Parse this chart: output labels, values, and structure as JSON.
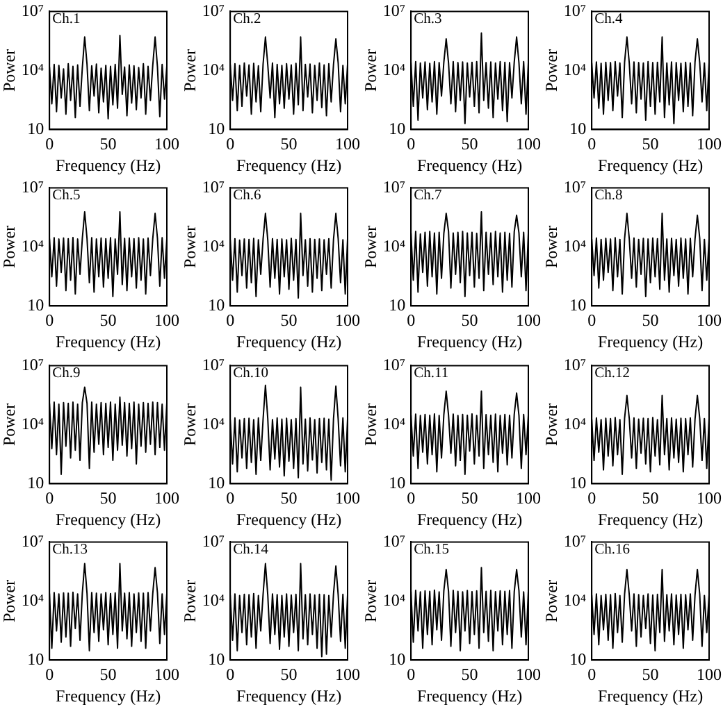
{
  "chart_data": [
    {
      "type": "line",
      "title": "Ch.1",
      "xlabel": "Frequency (Hz)",
      "ylabel": "Power",
      "log": "y",
      "legend": false,
      "grid": false,
      "color": "#000000",
      "xlim": [
        0,
        100
      ],
      "xticks": [
        0,
        50,
        100
      ],
      "ylim": [
        10,
        10000000.0
      ],
      "yticks": [
        {
          "value": 10,
          "label": "10"
        },
        {
          "value": 10000.0,
          "label": "10⁴"
        },
        {
          "value": 10000000.0,
          "label": "10⁷"
        }
      ],
      "x": [
        0,
        2,
        4,
        6,
        8,
        10,
        12,
        14,
        16,
        18,
        20,
        22,
        24,
        26,
        28,
        30,
        32,
        34,
        36,
        38,
        40,
        42,
        44,
        46,
        48,
        50,
        52,
        54,
        56,
        58,
        60,
        62,
        64,
        66,
        68,
        70,
        72,
        74,
        76,
        78,
        80,
        82,
        84,
        86,
        88,
        90,
        92,
        94,
        96,
        98,
        100
      ],
      "values": [
        15000.0,
        200,
        20000.0,
        80,
        18000.0,
        400,
        12000.0,
        60,
        22000.0,
        300,
        16000.0,
        40,
        19000.0,
        150,
        14000.0,
        500000.0,
        20000.0,
        90,
        17000.0,
        500,
        21000.0,
        70,
        13000.0,
        250,
        18000.0,
        35,
        16000.0,
        180,
        20000.0,
        120,
        600000.0,
        600,
        15000.0,
        50,
        19000.0,
        220,
        17000.0,
        100,
        14000.0,
        400,
        22000.0,
        60,
        16000.0,
        300,
        18000.0,
        500000.0,
        15000.0,
        45,
        20000.0,
        350,
        17000.0
      ]
    },
    {
      "type": "line",
      "title": "Ch.2",
      "xlabel": "Frequency (Hz)",
      "ylabel": "Power",
      "log": "y",
      "legend": false,
      "grid": false,
      "color": "#000000",
      "xlim": [
        0,
        100
      ],
      "xticks": [
        0,
        50,
        100
      ],
      "ylim": [
        10,
        10000000.0
      ],
      "yticks": [
        {
          "value": 10,
          "label": "10"
        },
        {
          "value": 10000.0,
          "label": "10⁴"
        },
        {
          "value": 10000000.0,
          "label": "10⁷"
        }
      ],
      "x": [
        0,
        2,
        4,
        6,
        8,
        10,
        12,
        14,
        16,
        18,
        20,
        22,
        24,
        26,
        28,
        30,
        32,
        34,
        36,
        38,
        40,
        42,
        44,
        46,
        48,
        50,
        52,
        54,
        56,
        58,
        60,
        62,
        64,
        66,
        68,
        70,
        72,
        74,
        76,
        78,
        80,
        82,
        84,
        86,
        88,
        90,
        92,
        94,
        96,
        98,
        100
      ],
      "values": [
        20000.0,
        300,
        22000.0,
        90,
        18000.0,
        150,
        24000.0,
        500,
        19000.0,
        60,
        23000.0,
        250,
        17000.0,
        80,
        21000.0,
        500000.0,
        19000.0,
        400,
        24000.0,
        40,
        20000.0,
        200,
        18000.0,
        120,
        22000.0,
        350,
        19000.0,
        60,
        23000.0,
        180,
        500000.0,
        90,
        20000.0,
        450,
        21000.0,
        70,
        18000.0,
        300,
        24000.0,
        130,
        19000.0,
        50,
        22000.0,
        250,
        20000.0,
        400000.0,
        23000.0,
        80,
        18000.0,
        200,
        21000.0
      ]
    },
    {
      "type": "line",
      "title": "Ch.3",
      "xlabel": "Frequency (Hz)",
      "ylabel": "Power",
      "log": "y",
      "legend": false,
      "grid": false,
      "color": "#000000",
      "xlim": [
        0,
        100
      ],
      "xticks": [
        0,
        50,
        100
      ],
      "ylim": [
        10,
        10000000.0
      ],
      "yticks": [
        {
          "value": 10,
          "label": "10"
        },
        {
          "value": 10000.0,
          "label": "10⁴"
        },
        {
          "value": 10000000.0,
          "label": "10⁷"
        }
      ],
      "x": [
        0,
        2,
        4,
        6,
        8,
        10,
        12,
        14,
        16,
        18,
        20,
        22,
        24,
        26,
        28,
        30,
        32,
        34,
        36,
        38,
        40,
        42,
        44,
        46,
        48,
        50,
        52,
        54,
        56,
        58,
        60,
        62,
        64,
        66,
        68,
        70,
        72,
        74,
        76,
        78,
        80,
        82,
        84,
        86,
        88,
        90,
        92,
        94,
        96,
        98,
        100
      ],
      "values": [
        25000.0,
        150,
        28000.0,
        30,
        24000.0,
        400,
        27000.0,
        100,
        23000.0,
        250,
        28000.0,
        60,
        25000.0,
        500,
        26000.0,
        400000.0,
        24000.0,
        200,
        28000.0,
        80,
        25000.0,
        300,
        27000.0,
        20,
        24000.0,
        450,
        26000.0,
        150,
        28000.0,
        70,
        800000.0,
        300,
        25000.0,
        120,
        27000.0,
        40,
        24000.0,
        350,
        28000.0,
        90,
        26000.0,
        25,
        25000.0,
        400,
        27000.0,
        500000.0,
        24000.0,
        200,
        28000.0,
        60,
        25000.0
      ]
    },
    {
      "type": "line",
      "title": "Ch.4",
      "xlabel": "Frequency (Hz)",
      "ylabel": "Power",
      "log": "y",
      "legend": false,
      "grid": false,
      "color": "#000000",
      "xlim": [
        0,
        100
      ],
      "xticks": [
        0,
        50,
        100
      ],
      "ylim": [
        10,
        10000000.0
      ],
      "yticks": [
        {
          "value": 10,
          "label": "10"
        },
        {
          "value": 10000.0,
          "label": "10⁴"
        },
        {
          "value": 10000000.0,
          "label": "10⁷"
        }
      ],
      "x": [
        0,
        2,
        4,
        6,
        8,
        10,
        12,
        14,
        16,
        18,
        20,
        22,
        24,
        26,
        28,
        30,
        32,
        34,
        36,
        38,
        40,
        42,
        44,
        46,
        48,
        50,
        52,
        54,
        56,
        58,
        60,
        62,
        64,
        66,
        68,
        70,
        72,
        74,
        76,
        78,
        80,
        82,
        84,
        86,
        88,
        90,
        92,
        94,
        96,
        98,
        100
      ],
      "values": [
        24000.0,
        400,
        27000.0,
        120,
        23000.0,
        60,
        26000.0,
        300,
        25000.0,
        90,
        28000.0,
        500,
        24000.0,
        40,
        26000.0,
        500000.0,
        23000.0,
        200,
        27000.0,
        70,
        25000.0,
        350,
        24000.0,
        30,
        28000.0,
        150,
        25000.0,
        60,
        26000.0,
        250,
        500000.0,
        40,
        24000.0,
        180,
        27000.0,
        20,
        25000.0,
        300,
        23000.0,
        80,
        26000.0,
        150,
        24000.0,
        50,
        27000.0,
        400000.0,
        25000.0,
        250,
        24000.0,
        90,
        26000.0
      ]
    },
    {
      "type": "line",
      "title": "Ch.5",
      "xlabel": "Frequency (Hz)",
      "ylabel": "Power",
      "log": "y",
      "legend": false,
      "grid": false,
      "color": "#000000",
      "xlim": [
        0,
        100
      ],
      "xticks": [
        0,
        50,
        100
      ],
      "ylim": [
        10,
        10000000.0
      ],
      "yticks": [
        {
          "value": 10,
          "label": "10"
        },
        {
          "value": 10000.0,
          "label": "10⁴"
        },
        {
          "value": 10000000.0,
          "label": "10⁷"
        }
      ],
      "x": [
        0,
        2,
        4,
        6,
        8,
        10,
        12,
        14,
        16,
        18,
        20,
        22,
        24,
        26,
        28,
        30,
        32,
        34,
        36,
        38,
        40,
        42,
        44,
        46,
        48,
        50,
        52,
        54,
        56,
        58,
        60,
        62,
        64,
        66,
        68,
        70,
        72,
        74,
        76,
        78,
        80,
        82,
        84,
        86,
        88,
        90,
        92,
        94,
        96,
        98,
        100
      ],
      "values": [
        26000.0,
        300,
        29000.0,
        100,
        25000.0,
        500,
        28000.0,
        60,
        26000.0,
        200,
        30000.0,
        40,
        25000.0,
        400,
        27000.0,
        600000.0,
        26000.0,
        150,
        29000.0,
        50,
        25000.0,
        300,
        28000.0,
        90,
        26000.0,
        250,
        29000.0,
        30,
        25000.0,
        400,
        600000.0,
        120,
        27000.0,
        60,
        28000.0,
        300,
        26000.0,
        80,
        29000.0,
        200,
        25000.0,
        40,
        28000.0,
        350,
        26000.0,
        500000.0,
        27000.0,
        100,
        29000.0,
        250,
        26000.0
      ]
    },
    {
      "type": "line",
      "title": "Ch.6",
      "xlabel": "Frequency (Hz)",
      "ylabel": "Power",
      "log": "y",
      "legend": false,
      "grid": false,
      "color": "#000000",
      "xlim": [
        0,
        100
      ],
      "xticks": [
        0,
        50,
        100
      ],
      "ylim": [
        10,
        10000000.0
      ],
      "yticks": [
        {
          "value": 10,
          "label": "10"
        },
        {
          "value": 10000.0,
          "label": "10⁴"
        },
        {
          "value": 10000000.0,
          "label": "10⁷"
        }
      ],
      "x": [
        0,
        2,
        4,
        6,
        8,
        10,
        12,
        14,
        16,
        18,
        20,
        22,
        24,
        26,
        28,
        30,
        32,
        34,
        36,
        38,
        40,
        42,
        44,
        46,
        48,
        50,
        52,
        54,
        56,
        58,
        60,
        62,
        64,
        66,
        68,
        70,
        72,
        74,
        76,
        78,
        80,
        82,
        84,
        86,
        88,
        90,
        92,
        94,
        96,
        98,
        100
      ],
      "values": [
        23000.0,
        200,
        26000.0,
        50,
        22000.0,
        350,
        25000.0,
        80,
        24000.0,
        150,
        27000.0,
        30,
        23000.0,
        400,
        25000.0,
        500000.0,
        22000.0,
        90,
        26000.0,
        250,
        24000.0,
        40,
        25000.0,
        300,
        23000.0,
        70,
        27000.0,
        200,
        24000.0,
        25,
        500000.0,
        350,
        23000.0,
        100,
        26000.0,
        50,
        24000.0,
        250,
        25000.0,
        60,
        23000.0,
        400,
        26000.0,
        80,
        24000.0,
        500000.0,
        25000.0,
        150,
        23000.0,
        40,
        26000.0
      ]
    },
    {
      "type": "line",
      "title": "Ch.7",
      "xlabel": "Frequency (Hz)",
      "ylabel": "Power",
      "log": "y",
      "legend": false,
      "grid": false,
      "color": "#000000",
      "xlim": [
        0,
        100
      ],
      "xticks": [
        0,
        50,
        100
      ],
      "ylim": [
        10,
        10000000.0
      ],
      "yticks": [
        {
          "value": 10,
          "label": "10"
        },
        {
          "value": 10000.0,
          "label": "10⁴"
        },
        {
          "value": 10000000.0,
          "label": "10⁷"
        }
      ],
      "x": [
        0,
        2,
        4,
        6,
        8,
        10,
        12,
        14,
        16,
        18,
        20,
        22,
        24,
        26,
        28,
        30,
        32,
        34,
        36,
        38,
        40,
        42,
        44,
        46,
        48,
        50,
        52,
        54,
        56,
        58,
        60,
        62,
        64,
        66,
        68,
        70,
        72,
        74,
        76,
        78,
        80,
        82,
        84,
        86,
        88,
        90,
        92,
        94,
        96,
        98,
        100
      ],
      "values": [
        50000.0,
        200,
        60000.0,
        50,
        45000.0,
        500,
        55000.0,
        100,
        60000.0,
        300,
        50000.0,
        40,
        55000.0,
        250,
        48000.0,
        500000.0,
        60000.0,
        80,
        50000.0,
        400,
        55000.0,
        150,
        60000.0,
        30,
        50000.0,
        350,
        55000.0,
        90,
        48000.0,
        250,
        600000.0,
        60,
        55000.0,
        400,
        50000.0,
        120,
        60000.0,
        300,
        50000.0,
        50,
        55000.0,
        200,
        48000.0,
        90,
        60000.0,
        400000.0,
        50000.0,
        300,
        55000.0,
        60,
        50000.0
      ]
    },
    {
      "type": "line",
      "title": "Ch.8",
      "xlabel": "Frequency (Hz)",
      "ylabel": "Power",
      "log": "y",
      "legend": false,
      "grid": false,
      "color": "#000000",
      "xlim": [
        0,
        100
      ],
      "xticks": [
        0,
        50,
        100
      ],
      "ylim": [
        10,
        10000000.0
      ],
      "yticks": [
        {
          "value": 10,
          "label": "10"
        },
        {
          "value": 10000.0,
          "label": "10⁴"
        },
        {
          "value": 10000000.0,
          "label": "10⁷"
        }
      ],
      "x": [
        0,
        2,
        4,
        6,
        8,
        10,
        12,
        14,
        16,
        18,
        20,
        22,
        24,
        26,
        28,
        30,
        32,
        34,
        36,
        38,
        40,
        42,
        44,
        46,
        48,
        50,
        52,
        54,
        56,
        58,
        60,
        62,
        64,
        66,
        68,
        70,
        72,
        74,
        76,
        78,
        80,
        82,
        84,
        86,
        88,
        90,
        92,
        94,
        96,
        98,
        100
      ],
      "values": [
        25000.0,
        350,
        28000.0,
        80,
        24000.0,
        200,
        27000.0,
        500,
        25000.0,
        60,
        29000.0,
        300,
        24000.0,
        40,
        26000.0,
        500000.0,
        25000.0,
        250,
        28000.0,
        90,
        24000.0,
        400,
        27000.0,
        30,
        25000.0,
        150,
        28000.0,
        300,
        26000.0,
        70,
        500000.0,
        200,
        25000.0,
        50,
        27000.0,
        350,
        24000.0,
        100,
        28000.0,
        250,
        25000.0,
        40,
        27000.0,
        300,
        25000.0,
        400000.0,
        28000.0,
        60,
        24000.0,
        200,
        26000.0
      ]
    },
    {
      "type": "line",
      "title": "Ch.9",
      "xlabel": "Frequency (Hz)",
      "ylabel": "Power",
      "log": "y",
      "legend": false,
      "grid": false,
      "color": "#000000",
      "xlim": [
        0,
        100
      ],
      "xticks": [
        0,
        50,
        100
      ],
      "ylim": [
        10,
        10000000.0
      ],
      "yticks": [
        {
          "value": 10,
          "label": "10"
        },
        {
          "value": 10000.0,
          "label": "10⁴"
        },
        {
          "value": 10000000.0,
          "label": "10⁷"
        }
      ],
      "x": [
        0,
        2,
        4,
        6,
        8,
        10,
        12,
        14,
        16,
        18,
        20,
        22,
        24,
        26,
        28,
        30,
        32,
        34,
        36,
        38,
        40,
        42,
        44,
        46,
        48,
        50,
        52,
        54,
        56,
        58,
        60,
        62,
        64,
        66,
        68,
        70,
        72,
        74,
        76,
        78,
        80,
        82,
        84,
        86,
        88,
        90,
        92,
        94,
        96,
        98,
        100
      ],
      "values": [
        120000.0,
        600,
        140000.0,
        300,
        110000.0,
        30,
        130000.0,
        800,
        120000.0,
        200,
        140000.0,
        500,
        110000.0,
        150,
        130000.0,
        800000.0,
        120000.0,
        60,
        140000.0,
        400,
        110000.0,
        1000,
        130000.0,
        300,
        120000.0,
        700,
        140000.0,
        150,
        110000.0,
        500,
        250000.0,
        900,
        130000.0,
        250,
        120000.0,
        600,
        140000.0,
        100,
        110000.0,
        800,
        130000.0,
        400,
        120000.0,
        1000,
        140000.0,
        300,
        130000.0,
        700,
        110000.0,
        500,
        130000.0
      ]
    },
    {
      "type": "line",
      "title": "Ch.10",
      "xlabel": "Frequency (Hz)",
      "ylabel": "Power",
      "log": "y",
      "legend": false,
      "grid": false,
      "color": "#000000",
      "xlim": [
        0,
        100
      ],
      "xticks": [
        0,
        50,
        100
      ],
      "ylim": [
        10,
        10000000.0
      ],
      "yticks": [
        {
          "value": 10,
          "label": "10"
        },
        {
          "value": 10000.0,
          "label": "10⁴"
        },
        {
          "value": 10000000.0,
          "label": "10⁷"
        }
      ],
      "x": [
        0,
        2,
        4,
        6,
        8,
        10,
        12,
        14,
        16,
        18,
        20,
        22,
        24,
        26,
        28,
        30,
        32,
        34,
        36,
        38,
        40,
        42,
        44,
        46,
        48,
        50,
        52,
        54,
        56,
        58,
        60,
        62,
        64,
        66,
        68,
        70,
        72,
        74,
        76,
        78,
        80,
        82,
        84,
        86,
        88,
        90,
        92,
        94,
        96,
        98,
        100
      ],
      "values": [
        18000.0,
        100,
        22000.0,
        40,
        17000.0,
        200,
        20000.0,
        60,
        21000.0,
        120,
        18000.0,
        30,
        22000.0,
        150,
        19000.0,
        1000000.0,
        20000.0,
        50,
        18000.0,
        180,
        22000.0,
        70,
        19000.0,
        25,
        21000.0,
        140,
        18000.0,
        60,
        20000.0,
        20,
        800000.0,
        100,
        19000.0,
        45,
        22000.0,
        160,
        18000.0,
        35,
        20000.0,
        120,
        21000.0,
        50,
        19000.0,
        15,
        20000.0,
        900000.0,
        18000.0,
        80,
        22000.0,
        40,
        20000.0
      ]
    },
    {
      "type": "line",
      "title": "Ch.11",
      "xlabel": "Frequency (Hz)",
      "ylabel": "Power",
      "log": "y",
      "legend": false,
      "grid": false,
      "color": "#000000",
      "xlim": [
        0,
        100
      ],
      "xticks": [
        0,
        50,
        100
      ],
      "ylim": [
        10,
        10000000.0
      ],
      "yticks": [
        {
          "value": 10,
          "label": "10"
        },
        {
          "value": 10000.0,
          "label": "10⁴"
        },
        {
          "value": 10000000.0,
          "label": "10⁷"
        }
      ],
      "x": [
        0,
        2,
        4,
        6,
        8,
        10,
        12,
        14,
        16,
        18,
        20,
        22,
        24,
        26,
        28,
        30,
        32,
        34,
        36,
        38,
        40,
        42,
        44,
        46,
        48,
        50,
        52,
        54,
        56,
        58,
        60,
        62,
        64,
        66,
        68,
        70,
        72,
        74,
        76,
        78,
        80,
        82,
        84,
        86,
        88,
        90,
        92,
        94,
        96,
        98,
        100
      ],
      "values": [
        30000.0,
        250,
        34000.0,
        60,
        29000.0,
        400,
        33000.0,
        100,
        30000.0,
        300,
        35000.0,
        40,
        29000.0,
        200,
        32000.0,
        500000.0,
        30000.0,
        350,
        34000.0,
        80,
        29000.0,
        150,
        33000.0,
        30,
        30000.0,
        450,
        35000.0,
        100,
        29000.0,
        250,
        500000.0,
        60,
        32000.0,
        300,
        30000.0,
        120,
        34000.0,
        40,
        29000.0,
        350,
        33000.0,
        90,
        30000.0,
        200,
        34000.0,
        400000.0,
        29000.0,
        60,
        33000.0,
        300,
        30000.0
      ]
    },
    {
      "type": "line",
      "title": "Ch.12",
      "xlabel": "Frequency (Hz)",
      "ylabel": "Power",
      "log": "y",
      "legend": false,
      "grid": false,
      "color": "#000000",
      "xlim": [
        0,
        100
      ],
      "xticks": [
        0,
        50,
        100
      ],
      "ylim": [
        10,
        10000000.0
      ],
      "yticks": [
        {
          "value": 10,
          "label": "10"
        },
        {
          "value": 10000.0,
          "label": "10⁴"
        },
        {
          "value": 10000000.0,
          "label": "10⁷"
        }
      ],
      "x": [
        0,
        2,
        4,
        6,
        8,
        10,
        12,
        14,
        16,
        18,
        20,
        22,
        24,
        26,
        28,
        30,
        32,
        34,
        36,
        38,
        40,
        42,
        44,
        46,
        48,
        50,
        52,
        54,
        56,
        58,
        60,
        62,
        64,
        66,
        68,
        70,
        72,
        74,
        76,
        78,
        80,
        82,
        84,
        86,
        88,
        90,
        92,
        94,
        96,
        98,
        100
      ],
      "values": [
        19000.0,
        150,
        22000.0,
        400,
        18000.0,
        50,
        21000.0,
        250,
        20000.0,
        80,
        23000.0,
        300,
        18000.0,
        30,
        21000.0,
        300000.0,
        20000.0,
        200,
        22000.0,
        60,
        19000.0,
        350,
        21000.0,
        100,
        20000.0,
        40,
        23000.0,
        250,
        18000.0,
        90,
        300000.0,
        300,
        20000.0,
        50,
        22000.0,
        200,
        19000.0,
        120,
        21000.0,
        40,
        20000.0,
        300,
        22000.0,
        70,
        19000.0,
        300000.0,
        21000.0,
        150,
        20000.0,
        60,
        22000.0
      ]
    },
    {
      "type": "line",
      "title": "Ch.13",
      "xlabel": "Frequency (Hz)",
      "ylabel": "Power",
      "log": "y",
      "legend": false,
      "grid": false,
      "color": "#000000",
      "xlim": [
        0,
        100
      ],
      "xticks": [
        0,
        50,
        100
      ],
      "ylim": [
        10,
        10000000.0
      ],
      "yticks": [
        {
          "value": 10,
          "label": "10"
        },
        {
          "value": 10000.0,
          "label": "10⁴"
        },
        {
          "value": 10000000.0,
          "label": "10⁷"
        }
      ],
      "x": [
        0,
        2,
        4,
        6,
        8,
        10,
        12,
        14,
        16,
        18,
        20,
        22,
        24,
        26,
        28,
        30,
        32,
        34,
        36,
        38,
        40,
        42,
        44,
        46,
        48,
        50,
        52,
        54,
        56,
        58,
        60,
        62,
        64,
        66,
        68,
        70,
        72,
        74,
        76,
        78,
        80,
        82,
        84,
        86,
        88,
        90,
        92,
        94,
        96,
        98,
        100
      ],
      "values": [
        24000.0,
        40,
        27000.0,
        300,
        23000.0,
        80,
        26000.0,
        150,
        25000.0,
        50,
        28000.0,
        400,
        23000.0,
        100,
        26000.0,
        800000.0,
        24000.0,
        30,
        27000.0,
        250,
        25000.0,
        90,
        23000.0,
        350,
        27000.0,
        60,
        24000.0,
        200,
        26000.0,
        40,
        800000.0,
        300,
        25000.0,
        120,
        27000.0,
        50,
        23000.0,
        250,
        26000.0,
        90,
        25000.0,
        40,
        27000.0,
        300,
        24000.0,
        500000.0,
        26000.0,
        70,
        23000.0,
        200,
        25000.0
      ]
    },
    {
      "type": "line",
      "title": "Ch.14",
      "xlabel": "Frequency (Hz)",
      "ylabel": "Power",
      "log": "y",
      "legend": false,
      "grid": false,
      "color": "#000000",
      "xlim": [
        0,
        100
      ],
      "xticks": [
        0,
        50,
        100
      ],
      "ylim": [
        10,
        10000000.0
      ],
      "yticks": [
        {
          "value": 10,
          "label": "10"
        },
        {
          "value": 10000.0,
          "label": "10⁴"
        },
        {
          "value": 10000000.0,
          "label": "10⁷"
        }
      ],
      "x": [
        0,
        2,
        4,
        6,
        8,
        10,
        12,
        14,
        16,
        18,
        20,
        22,
        24,
        26,
        28,
        30,
        32,
        34,
        36,
        38,
        40,
        42,
        44,
        46,
        48,
        50,
        52,
        54,
        56,
        58,
        60,
        62,
        64,
        66,
        68,
        70,
        72,
        74,
        76,
        78,
        80,
        82,
        84,
        86,
        88,
        90,
        92,
        94,
        96,
        98,
        100
      ],
      "values": [
        20000.0,
        100,
        23000.0,
        30,
        19000.0,
        250,
        22000.0,
        60,
        21000.0,
        150,
        24000.0,
        40,
        19000.0,
        300,
        22000.0,
        800000.0,
        20000.0,
        70,
        23000.0,
        200,
        21000.0,
        35,
        19000.0,
        150,
        23000.0,
        50,
        20000.0,
        250,
        22000.0,
        30,
        800000.0,
        120,
        21000.0,
        60,
        23000.0,
        200,
        20000.0,
        40,
        22000.0,
        15,
        21000.0,
        20,
        19000.0,
        150,
        23000.0,
        600000.0,
        20000.0,
        90,
        22000.0,
        40,
        21000.0
      ]
    },
    {
      "type": "line",
      "title": "Ch.15",
      "xlabel": "Frequency (Hz)",
      "ylabel": "Power",
      "log": "y",
      "legend": false,
      "grid": false,
      "color": "#000000",
      "xlim": [
        0,
        100
      ],
      "xticks": [
        0,
        50,
        100
      ],
      "ylim": [
        10,
        10000000.0
      ],
      "yticks": [
        {
          "value": 10,
          "label": "10"
        },
        {
          "value": 10000.0,
          "label": "10⁴"
        },
        {
          "value": 10000000.0,
          "label": "10⁷"
        }
      ],
      "x": [
        0,
        2,
        4,
        6,
        8,
        10,
        12,
        14,
        16,
        18,
        20,
        22,
        24,
        26,
        28,
        30,
        32,
        34,
        36,
        38,
        40,
        42,
        44,
        46,
        48,
        50,
        52,
        54,
        56,
        58,
        60,
        62,
        64,
        66,
        68,
        70,
        72,
        74,
        76,
        78,
        80,
        82,
        84,
        86,
        88,
        90,
        92,
        94,
        96,
        98,
        100
      ],
      "values": [
        30000.0,
        80,
        35000.0,
        300,
        29000.0,
        40,
        33000.0,
        200,
        31000.0,
        60,
        36000.0,
        350,
        29000.0,
        100,
        33000.0,
        400000.0,
        30000.0,
        50,
        35000.0,
        250,
        31000.0,
        30,
        29000.0,
        300,
        34000.0,
        70,
        30000.0,
        200,
        33000.0,
        40,
        500000.0,
        250,
        31000.0,
        90,
        35000.0,
        30,
        30000.0,
        300,
        33000.0,
        60,
        31000.0,
        200,
        34000.0,
        40,
        30000.0,
        400000.0,
        33000.0,
        150,
        29000.0,
        60,
        32000.0
      ]
    },
    {
      "type": "line",
      "title": "Ch.16",
      "xlabel": "Frequency (Hz)",
      "ylabel": "Power",
      "log": "y",
      "legend": false,
      "grid": false,
      "color": "#000000",
      "xlim": [
        0,
        100
      ],
      "xticks": [
        0,
        50,
        100
      ],
      "ylim": [
        10,
        10000000.0
      ],
      "yticks": [
        {
          "value": 10,
          "label": "10"
        },
        {
          "value": 10000.0,
          "label": "10⁴"
        },
        {
          "value": 10000000.0,
          "label": "10⁷"
        }
      ],
      "x": [
        0,
        2,
        4,
        6,
        8,
        10,
        12,
        14,
        16,
        18,
        20,
        22,
        24,
        26,
        28,
        30,
        32,
        34,
        36,
        38,
        40,
        42,
        44,
        46,
        48,
        50,
        52,
        54,
        56,
        58,
        60,
        62,
        64,
        66,
        68,
        70,
        72,
        74,
        76,
        78,
        80,
        82,
        84,
        86,
        88,
        90,
        92,
        94,
        96,
        98,
        100
      ],
      "values": [
        20000.0,
        200,
        23000.0,
        60,
        19000.0,
        350,
        22000.0,
        100,
        21000.0,
        40,
        24000.0,
        250,
        19000.0,
        80,
        22000.0,
        400000.0,
        20000.0,
        300,
        23000.0,
        50,
        21000.0,
        150,
        19000.0,
        400,
        23000.0,
        70,
        20000.0,
        30,
        22000.0,
        250,
        400000.0,
        90,
        21000.0,
        300,
        23000.0,
        60,
        20000.0,
        200,
        22000.0,
        40,
        21000.0,
        350,
        23000.0,
        100,
        20000.0,
        400000.0,
        22000.0,
        50,
        19000.0,
        250,
        21000.0
      ]
    }
  ]
}
